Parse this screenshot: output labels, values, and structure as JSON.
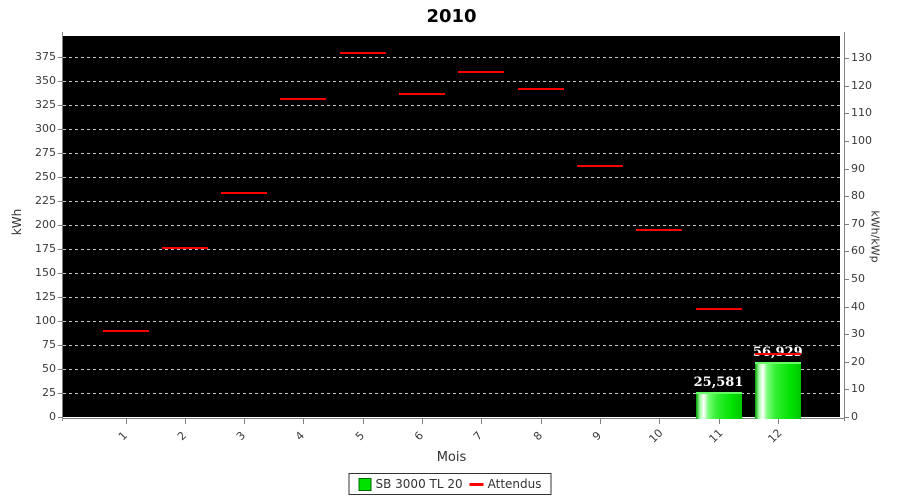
{
  "title": "2010",
  "colors": {
    "bar_green": "#00e300",
    "expected_red": "#ff0000",
    "plot_background": "#000000",
    "gridline": "#c8c8c8",
    "axis": "#808080",
    "tick_text": "#3a3a3a"
  },
  "chart_data": {
    "type": "bar",
    "title": "2010",
    "xlabel": "Mois",
    "ylabel_left": "kWh",
    "ylabel_right": "kWh/kWp",
    "categories": [
      "1",
      "2",
      "3",
      "4",
      "5",
      "6",
      "7",
      "8",
      "9",
      "10",
      "11",
      "12"
    ],
    "series": [
      {
        "name": "SB 3000 TL 20",
        "render": "bar",
        "color": "#00e300",
        "values": [
          null,
          null,
          null,
          null,
          null,
          null,
          null,
          null,
          null,
          null,
          25.581,
          56.929
        ],
        "value_labels": [
          null,
          null,
          null,
          null,
          null,
          null,
          null,
          null,
          null,
          null,
          "25,581",
          "56,929"
        ]
      },
      {
        "name": "Attendus",
        "render": "dash",
        "color": "#ff0000",
        "values": [
          90,
          176,
          233,
          331,
          379,
          337,
          359,
          342,
          262,
          195,
          113,
          66
        ]
      }
    ],
    "left_axis": {
      "min": 0,
      "max": 397,
      "step": 25,
      "ticks": [
        0,
        25,
        50,
        75,
        100,
        125,
        150,
        175,
        200,
        225,
        250,
        275,
        300,
        325,
        350,
        375
      ]
    },
    "right_axis": {
      "min": 0,
      "max": 138,
      "step": 10,
      "ticks": [
        0,
        10,
        20,
        30,
        40,
        50,
        60,
        70,
        80,
        90,
        100,
        110,
        120,
        130
      ]
    },
    "grid": "horizontal-dashed",
    "legend_position": "bottom",
    "legend": [
      {
        "label": "SB 3000 TL 20",
        "swatch": "square",
        "color": "#00e300"
      },
      {
        "label": "Attendus",
        "swatch": "line",
        "color": "#ff0000"
      }
    ]
  }
}
